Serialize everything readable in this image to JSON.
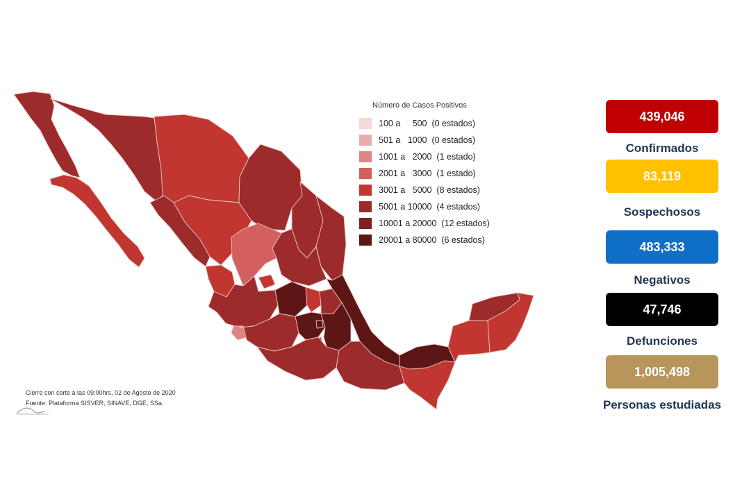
{
  "legend": {
    "title": "Número de Casos Positivos",
    "items": [
      {
        "label": "100 a     500  (0 estados)",
        "color": "#f6d9d9"
      },
      {
        "label": "501 a   1000  (0 estados)",
        "color": "#e8adab"
      },
      {
        "label": "1001 a   2000  (1 estado)",
        "color": "#dc8584"
      },
      {
        "label": "2001 a   3000  (1 estado)",
        "color": "#d35f5e"
      },
      {
        "label": "3001 a   5000  (8 estados)",
        "color": "#c13630"
      },
      {
        "label": "5001 a 10000  (4 estados)",
        "color": "#9d2b2b"
      },
      {
        "label": "10001 a 20000  (12 estados)",
        "color": "#7c2222"
      },
      {
        "label": "20001 a 80000  (6 estados)",
        "color": "#5c1616"
      }
    ]
  },
  "source": {
    "line1": "Cierre con corte a las 09:00hrs, 02 de Agosto de 2020",
    "line2": "Fuente: Plataforma SISVER, SINAVE, DGE, SSa."
  },
  "stats": [
    {
      "value": "439,046",
      "label": "Confirmados",
      "bg": "#c00000",
      "fg": "#ffffff"
    },
    {
      "value": "83,119",
      "label": "Sospechosos",
      "bg": "#ffc000",
      "fg": "#ffffff"
    },
    {
      "value": "483,333",
      "label": "Negativos",
      "bg": "#0f6fc6",
      "fg": "#ffffff"
    },
    {
      "value": "47,746",
      "label": "Defunciones",
      "bg": "#000000",
      "fg": "#ffffff"
    },
    {
      "value": "1,005,498",
      "label": "Personas estudiadas",
      "bg": "#b8955a",
      "fg": "#ffffff"
    }
  ],
  "map": {
    "colors": {
      "c5000": "#c13630",
      "c10000": "#9d2b2b",
      "c20000": "#7c2222",
      "c80000": "#5c1616",
      "c2000": "#dc8584",
      "c3000": "#d35f5e"
    }
  }
}
